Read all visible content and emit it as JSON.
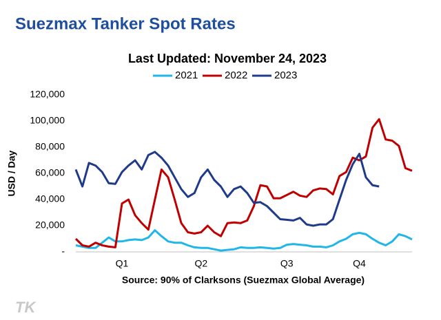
{
  "chart_data": {
    "type": "line",
    "title": "Suezmax Tanker Spot Rates",
    "subtitle": "Last Updated: November 24, 2023",
    "y_label": "USD / Day",
    "source": "Source: 90% of Clarksons (Suezmax Global Average)",
    "logo": "TK",
    "categories": [
      null,
      null,
      null,
      null,
      null,
      null,
      null,
      "Q1",
      null,
      null,
      null,
      null,
      null,
      null,
      null,
      null,
      null,
      null,
      null,
      "Q2",
      null,
      null,
      null,
      null,
      null,
      null,
      null,
      null,
      null,
      null,
      null,
      null,
      "Q3",
      null,
      null,
      null,
      null,
      null,
      null,
      null,
      null,
      null,
      null,
      "Q4",
      null,
      null,
      null,
      null,
      null,
      null,
      null,
      null
    ],
    "series": [
      {
        "name": "2021",
        "color": "#1fb6e8",
        "values": [
          5000,
          4000,
          3000,
          3000,
          7000,
          11000,
          8000,
          8000,
          9000,
          9500,
          9000,
          11000,
          16500,
          12000,
          8000,
          7000,
          7000,
          5000,
          3500,
          3000,
          3000,
          2000,
          1000,
          1500,
          2000,
          3500,
          3000,
          3000,
          3500,
          3000,
          2500,
          3000,
          5500,
          6000,
          5500,
          5000,
          4000,
          4000,
          3500,
          5000,
          8000,
          10000,
          13500,
          14500,
          13500,
          10000,
          7000,
          5000,
          8000,
          13500,
          12000,
          9500
        ]
      },
      {
        "name": "2022",
        "color": "#c00000",
        "values": [
          10000,
          5000,
          4000,
          7000,
          5000,
          4000,
          3500,
          37000,
          40000,
          28000,
          22000,
          17000,
          40000,
          63000,
          57000,
          40000,
          22000,
          15000,
          14000,
          15000,
          20000,
          15000,
          12000,
          22000,
          22500,
          22000,
          24000,
          35000,
          51000,
          50000,
          41000,
          41000,
          43500,
          46000,
          43000,
          42000,
          47000,
          48500,
          48000,
          44000,
          58000,
          61000,
          72000,
          70000,
          73000,
          95000,
          101500,
          86000,
          85000,
          81000,
          64000,
          62000
        ]
      },
      {
        "name": "2023",
        "color": "#1f3a8a",
        "values": [
          63000,
          50000,
          68000,
          66000,
          61000,
          52500,
          52000,
          61000,
          66000,
          70000,
          63000,
          74000,
          76500,
          72000,
          66000,
          57000,
          48000,
          42000,
          45000,
          57000,
          63000,
          55000,
          50000,
          42000,
          48000,
          50000,
          45000,
          37500,
          38000,
          35000,
          30000,
          25000,
          24500,
          24000,
          26000,
          21000,
          20000,
          21000,
          21000,
          25000,
          40000,
          55000,
          67000,
          75000,
          57000,
          51000,
          50000,
          null,
          null,
          null,
          null,
          null
        ]
      }
    ],
    "ylim": [
      0,
      120000
    ],
    "yticks": [
      {
        "value": 0,
        "label": "-"
      },
      {
        "value": 20000,
        "label": "20,000"
      },
      {
        "value": 40000,
        "label": "40,000"
      },
      {
        "value": 60000,
        "label": "60,000"
      },
      {
        "value": 80000,
        "label": "80,000"
      },
      {
        "value": 100000,
        "label": "100,000"
      },
      {
        "value": 120000,
        "label": "120,000"
      }
    ],
    "grid": false
  }
}
